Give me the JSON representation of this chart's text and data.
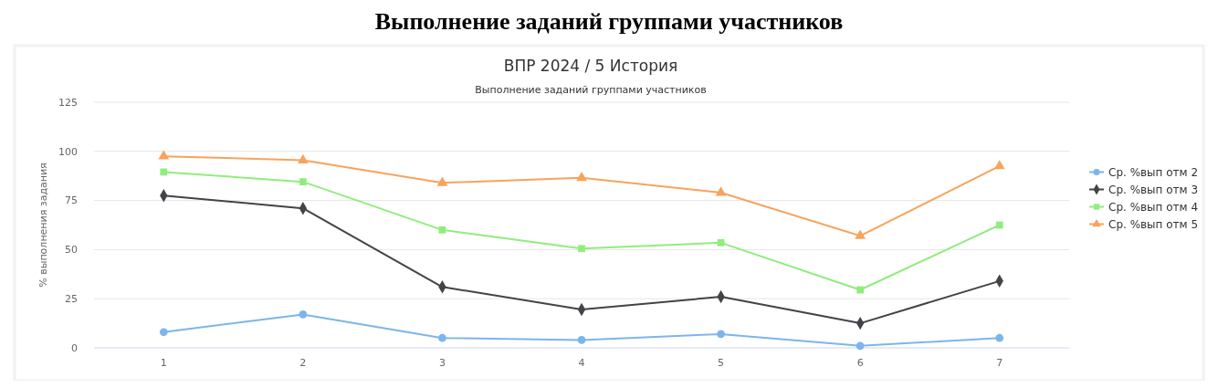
{
  "chart_data": {
    "type": "line",
    "title": "ВПР 2024 / 5 История",
    "subtitle": "Выполнение заданий группами участников",
    "ylabel": "% выполнения задания",
    "annotations": [
      "Выполнение заданий группами участников"
    ],
    "categories": [
      "1",
      "2",
      "3",
      "4",
      "5",
      "6",
      "7"
    ],
    "series": [
      {
        "name": "Ср. %вып отм 2",
        "color": "#7cb5ec",
        "marker": "circle",
        "values": [
          8,
          17,
          5,
          4,
          7,
          1,
          5
        ]
      },
      {
        "name": "Ср. %вып отм 3",
        "color": "#434348",
        "marker": "diamond",
        "values": [
          77.5,
          71,
          31,
          19.5,
          26,
          12.5,
          34
        ]
      },
      {
        "name": "Ср. %вып отм 4",
        "color": "#90ed7d",
        "marker": "square",
        "values": [
          89.5,
          84.5,
          60,
          50.5,
          53.5,
          29.5,
          62.5
        ]
      },
      {
        "name": "Ср. %вып отм 5",
        "color": "#f7a35c",
        "marker": "triangle",
        "values": [
          97.5,
          95.5,
          84,
          86.5,
          79,
          57,
          92.5
        ]
      }
    ],
    "ylim": [
      0,
      125
    ],
    "yticks": [
      0,
      25,
      50,
      75,
      100,
      125
    ],
    "grid": "y",
    "legend": "right"
  }
}
